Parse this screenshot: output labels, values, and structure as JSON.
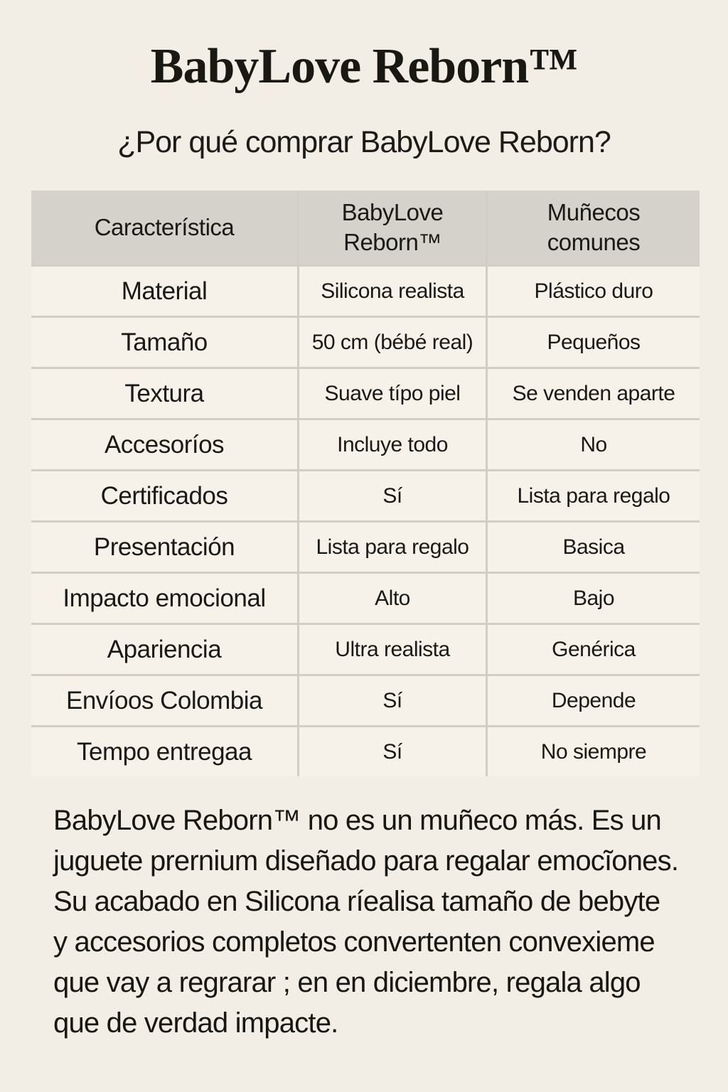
{
  "page": {
    "title": "BabyLove Reborn™",
    "subtitle": "¿Por qué comprar BabyLove Reborn?"
  },
  "table": {
    "headers": [
      "Característica",
      "BabyLove\nReborn™",
      "Muñecos\ncomunes"
    ],
    "rows": [
      {
        "feature": "Material",
        "babylove": "Silicona realista",
        "common": "Plástico duro"
      },
      {
        "feature": "Tamaño",
        "babylove": "50 cm (bébé real)",
        "common": "Pequeños"
      },
      {
        "feature": "Textura",
        "babylove": "Suave típo piel",
        "common": "Se venden aparte"
      },
      {
        "feature": "Accesoríos",
        "babylove": "Incluye todo",
        "common": "No"
      },
      {
        "feature": "Certificados",
        "babylove": "Sí",
        "common": "Lista para regalo"
      },
      {
        "feature": "Presentación",
        "babylove": "Lista para regalo",
        "common": "Basica"
      },
      {
        "feature": "Impacto emocional",
        "babylove": "Alto",
        "common": "Bajo"
      },
      {
        "feature": "Apariencia",
        "babylove": "Ultra realista",
        "common": "Genérica"
      },
      {
        "feature": "Envíoos Colombia",
        "babylove": "Sí",
        "common": "Depende"
      },
      {
        "feature": "Tempo entregaa",
        "babylove": "Sí",
        "common": "No siempre"
      }
    ]
  },
  "paragraph": {
    "text": "BabyLove Reborn™ no es un muñeco más. Es un\njuguete prernium diseñado para regalar emocĩones.\nSu acabado en Silicona ríealisa tamaño de bebyte\ny accesorios completos convertenten convexieme\nque vay a regrarar ; en en diciembre, regala algo\nque de verdad impacte."
  },
  "colors": {
    "page_bg": "#f3eee5",
    "header_bg": "#d5d2cc",
    "cell_bg": "#f6f2ea",
    "divider": "#d2cec5",
    "text": "#1a1915"
  }
}
